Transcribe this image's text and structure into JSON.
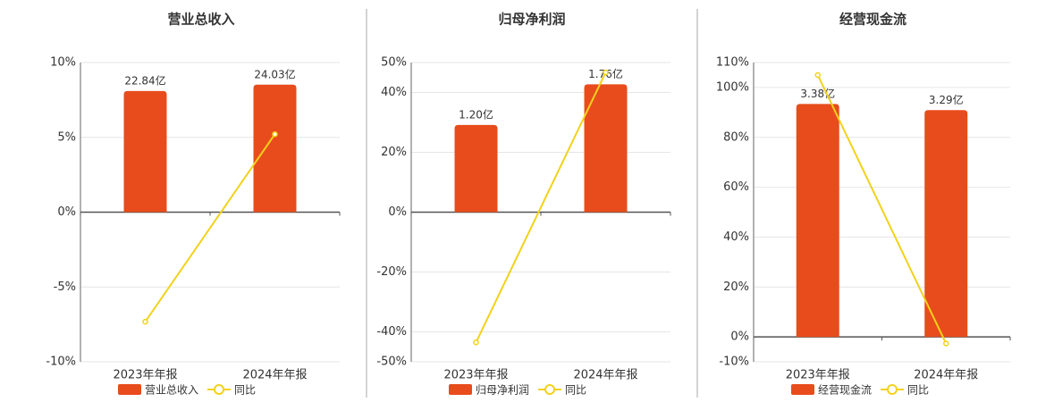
{
  "chart_data": [
    {
      "type": "bar",
      "title": "营业总收入",
      "categories": [
        "2023年年报",
        "2024年年报"
      ],
      "series": [
        {
          "name": "营业总收入",
          "type": "bar",
          "axis": "y2",
          "color": "#e84c1c",
          "values": [
            22.84,
            24.03
          ],
          "value_labels": [
            "22.84亿",
            "24.03亿"
          ]
        },
        {
          "name": "同比",
          "type": "line",
          "color": "#f2d21b",
          "values": [
            -7.32,
            5.21
          ]
        }
      ],
      "ylim": [
        -10,
        10
      ],
      "yticks": [
        {
          "value": 10,
          "label": "10%"
        },
        {
          "value": 5,
          "label": "5%"
        },
        {
          "value": 0,
          "label": "0%"
        },
        {
          "value": -5,
          "label": "-5%"
        },
        {
          "value": -10,
          "label": "-10%"
        }
      ],
      "y2lim": [
        -28.2,
        28.2
      ],
      "grid": true
    },
    {
      "type": "bar",
      "title": "归母净利润",
      "categories": [
        "2023年年报",
        "2024年年报"
      ],
      "series": [
        {
          "name": "归母净利润",
          "type": "bar",
          "axis": "y2",
          "color": "#e84c1c",
          "values": [
            1.2,
            1.76
          ],
          "value_labels": [
            "1.20亿",
            "1.76亿"
          ]
        },
        {
          "name": "同比",
          "type": "line",
          "color": "#f2d21b",
          "values": [
            -43.5,
            46.7
          ]
        }
      ],
      "ylim": [
        -50,
        50
      ],
      "yticks": [
        {
          "value": 50,
          "label": "50%"
        },
        {
          "value": 40,
          "label": "40%"
        },
        {
          "value": 20,
          "label": "20%"
        },
        {
          "value": 0,
          "label": "0%"
        },
        {
          "value": -20,
          "label": "-20%"
        },
        {
          "value": -40,
          "label": "-40%"
        },
        {
          "value": -50,
          "label": "-50%"
        }
      ],
      "y2lim": [
        -2.06,
        2.06
      ],
      "grid": true
    },
    {
      "type": "bar",
      "title": "经营现金流",
      "categories": [
        "2023年年报",
        "2024年年报"
      ],
      "series": [
        {
          "name": "经营现金流",
          "type": "bar",
          "axis": "y2",
          "color": "#e84c1c",
          "values": [
            3.38,
            3.29
          ],
          "value_labels": [
            "3.38亿",
            "3.29亿"
          ]
        },
        {
          "name": "同比",
          "type": "line",
          "color": "#f2d21b",
          "values": [
            105,
            -2.66
          ]
        }
      ],
      "ylim": [
        -10,
        110
      ],
      "yticks": [
        {
          "value": 110,
          "label": "110%"
        },
        {
          "value": 100,
          "label": "100%"
        },
        {
          "value": 80,
          "label": "80%"
        },
        {
          "value": 60,
          "label": "60%"
        },
        {
          "value": 40,
          "label": "40%"
        },
        {
          "value": 20,
          "label": "20%"
        },
        {
          "value": 0,
          "label": "0%"
        },
        {
          "value": -10,
          "label": "-10%"
        }
      ],
      "y2lim": [
        -0.36,
        3.98
      ],
      "grid": true
    }
  ]
}
